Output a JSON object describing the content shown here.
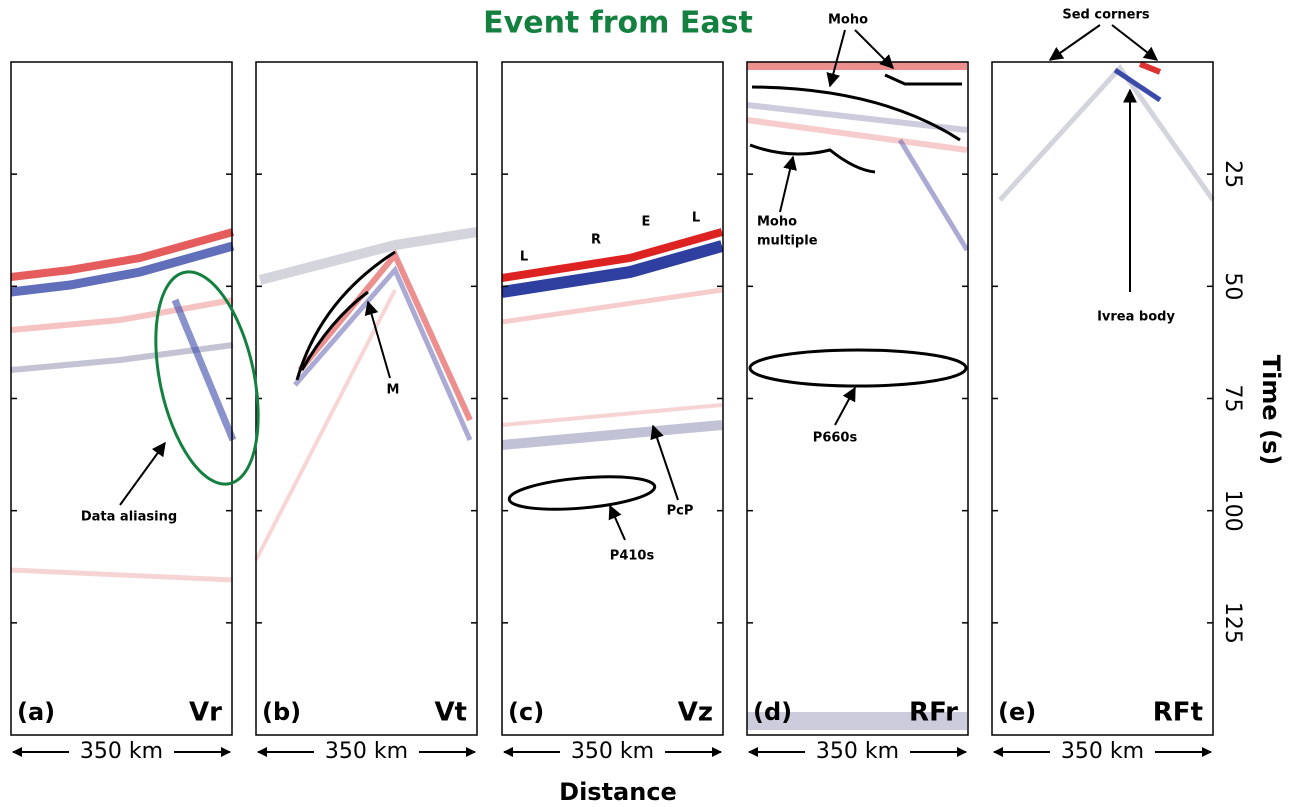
{
  "chart_data": {
    "type": "section",
    "title": "Event from East",
    "xlabel": "Distance",
    "ylabel": "Time (s)",
    "ylim": [
      0,
      150
    ],
    "yticks": [
      25,
      50,
      75,
      100,
      125
    ],
    "scale_bar": "350 km",
    "panels": [
      {
        "label": "(a)",
        "name": "Vr",
        "annotations": [
          "Data aliasing"
        ]
      },
      {
        "label": "(b)",
        "name": "Vt",
        "annotations": [
          "M"
        ]
      },
      {
        "label": "(c)",
        "name": "Vz",
        "annotations": [
          "L",
          "R",
          "E",
          "L",
          "PcP",
          "P410s"
        ]
      },
      {
        "label": "(d)",
        "name": "RFr",
        "annotations": [
          "Moho",
          "Moho",
          "multiple",
          "P660s"
        ]
      },
      {
        "label": "(e)",
        "name": "RFt",
        "annotations": [
          "Sed corners",
          "Ivrea body"
        ]
      }
    ]
  }
}
